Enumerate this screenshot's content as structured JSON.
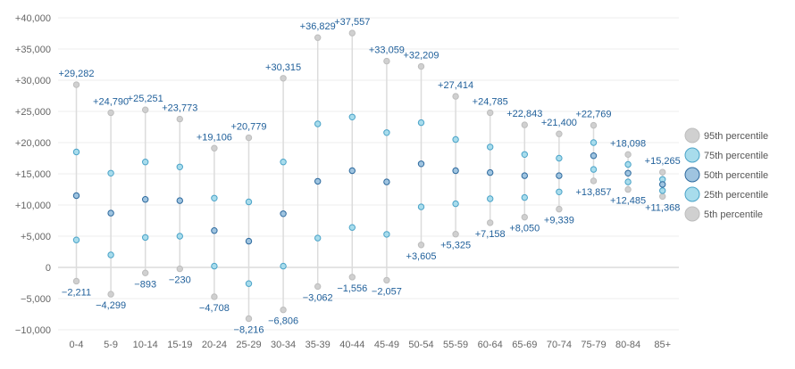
{
  "chart_data": {
    "type": "scatter",
    "categories": [
      "0-4",
      "5-9",
      "10-14",
      "15-19",
      "20-24",
      "25-29",
      "30-34",
      "35-39",
      "40-44",
      "45-49",
      "50-54",
      "55-59",
      "60-64",
      "65-69",
      "70-74",
      "75-79",
      "80-84",
      "85+"
    ],
    "ylim": [
      -10000,
      40000
    ],
    "yticks": [
      -10000,
      -5000,
      0,
      5000,
      10000,
      15000,
      20000,
      25000,
      30000,
      35000,
      40000
    ],
    "ytick_labels": [
      "−10,000",
      "−5,000",
      "0",
      "+5,000",
      "+10,000",
      "+15,000",
      "+20,000",
      "+25,000",
      "+30,000",
      "+35,000",
      "+40,000"
    ],
    "grid": true,
    "legend_position": "right",
    "series": [
      {
        "name": "95th percentile",
        "color": "#d0d0d0",
        "stroke": "#bdbdbd",
        "values": [
          29282,
          24790,
          25251,
          23773,
          19106,
          20779,
          30315,
          36829,
          37557,
          33059,
          32209,
          27414,
          24785,
          22843,
          21400,
          22769,
          18098,
          15265
        ]
      },
      {
        "name": "75th percentile",
        "color": "#a8dcec",
        "stroke": "#4aa3c8",
        "values": [
          18500,
          15100,
          16900,
          16100,
          11100,
          10500,
          16900,
          23000,
          24100,
          21600,
          23200,
          20500,
          19300,
          18100,
          17500,
          20000,
          16500,
          14100
        ]
      },
      {
        "name": "50th percentile",
        "color": "#9fc4e0",
        "stroke": "#2e6a9e",
        "values": [
          11500,
          8700,
          10900,
          10700,
          5900,
          4200,
          8600,
          13800,
          15500,
          13700,
          16600,
          15500,
          15200,
          14700,
          14700,
          17900,
          15100,
          13300
        ]
      },
      {
        "name": "25th percentile",
        "color": "#a8dcec",
        "stroke": "#4aa3c8",
        "values": [
          4400,
          2000,
          4800,
          5000,
          200,
          -2600,
          200,
          4700,
          6400,
          5300,
          9700,
          10200,
          11000,
          11200,
          12100,
          15700,
          13700,
          12300
        ]
      },
      {
        "name": "5th percentile",
        "color": "#d0d0d0",
        "stroke": "#bdbdbd",
        "values": [
          -2211,
          -4299,
          -893,
          -230,
          -4708,
          -8216,
          -6806,
          -3062,
          -1556,
          -2057,
          3605,
          5325,
          7158,
          8050,
          9339,
          13857,
          12485,
          11368
        ]
      }
    ],
    "top_labels": [
      "+29,282",
      "+24,790",
      "+25,251",
      "+23,773",
      "+19,106",
      "+20,779",
      "+30,315",
      "+36,829",
      "+37,557",
      "+33,059",
      "+32,209",
      "+27,414",
      "+24,785",
      "+22,843",
      "+21,400",
      "+22,769",
      "+18,098",
      "+15,265"
    ],
    "bottom_labels": [
      "−2,211",
      "−4,299",
      "−893",
      "−230",
      "−4,708",
      "−8,216",
      "−6,806",
      "−3,062",
      "−1,556",
      "−2,057",
      "+3,605",
      "+5,325",
      "+7,158",
      "+8,050",
      "+9,339",
      "+13,857",
      "+12,485",
      "+11,368"
    ]
  }
}
